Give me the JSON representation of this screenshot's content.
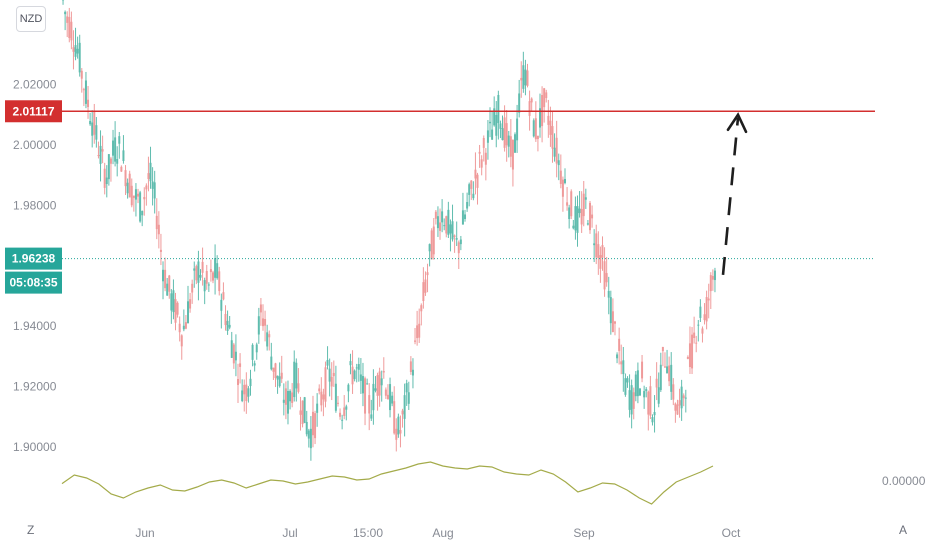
{
  "currency_label": "NZD",
  "corner_left": "Z",
  "corner_right": "A",
  "indicator_value_label": "0.00000",
  "price_labels": [
    "2.02000",
    "2.00000",
    "1.98000",
    "1.94000",
    "1.92000",
    "1.90000"
  ],
  "time_labels": [
    "Jun",
    "Jul",
    "15:00",
    "Aug",
    "Sep",
    "Oct"
  ],
  "resistance_badge": "2.01117",
  "current_price_badge": "1.96238",
  "countdown_badge": "05:08:35",
  "colors": {
    "up": "#5fbcae",
    "down": "#ef9a9a",
    "resistance": "#d32f2f",
    "current": "#26a69a",
    "indicator": "#a4ab4a",
    "arrow": "#1e1e1e"
  },
  "chart_data": {
    "type": "candlestick",
    "instrument_currency": "NZD",
    "y_axis_ticks": [
      2.02,
      2.0,
      1.98,
      1.94,
      1.92,
      1.9
    ],
    "ylim": [
      1.898,
      2.055
    ],
    "x_axis_ticks": [
      "Jun",
      "Jul",
      "15:00",
      "Aug",
      "Sep",
      "Oct"
    ],
    "resistance_level": 2.01117,
    "current_price": 1.96238,
    "countdown": "05:08:35",
    "projection": {
      "from": 1.957,
      "to": 2.011,
      "style": "dashed arrow"
    },
    "price_path": [
      2.05,
      2.042,
      2.04,
      2.035,
      2.03,
      2.022,
      2.015,
      2.01,
      2.004,
      1.998,
      1.992,
      1.99,
      1.996,
      2.0,
      1.998,
      1.993,
      1.988,
      1.984,
      1.982,
      1.979,
      1.985,
      1.99,
      1.984,
      1.975,
      1.962,
      1.955,
      1.95,
      1.946,
      1.942,
      1.938,
      1.944,
      1.95,
      1.955,
      1.96,
      1.955,
      1.952,
      1.956,
      1.958,
      1.952,
      1.946,
      1.94,
      1.934,
      1.928,
      1.922,
      1.918,
      1.924,
      1.93,
      1.938,
      1.944,
      1.94,
      1.932,
      1.926,
      1.922,
      1.918,
      1.914,
      1.918,
      1.924,
      1.918,
      1.912,
      1.906,
      1.905,
      1.91,
      1.915,
      1.92,
      1.924,
      1.922,
      1.916,
      1.912,
      1.916,
      1.922,
      1.926,
      1.924,
      1.92,
      1.916,
      1.913,
      1.918,
      1.922,
      1.926,
      1.92,
      1.914,
      1.908,
      1.904,
      1.91,
      1.918,
      1.926,
      1.934,
      1.942,
      1.952,
      1.96,
      1.968,
      1.974,
      1.978,
      1.976,
      1.972,
      1.968,
      1.966,
      1.972,
      1.978,
      1.983,
      1.988,
      1.992,
      1.997,
      2.0,
      2.004,
      2.008,
      2.012,
      2.006,
      2.0,
      1.996,
      2.002,
      2.016,
      2.026,
      2.018,
      2.008,
      2.004,
      2.01,
      2.014,
      2.008,
      2.002,
      1.996,
      1.99,
      1.985,
      1.98,
      1.976,
      1.974,
      1.978,
      1.98,
      1.975,
      1.97,
      1.965,
      1.96,
      1.952,
      1.944,
      1.936,
      1.928,
      1.922,
      1.918,
      1.916,
      1.92,
      1.924,
      1.918,
      1.915,
      1.913,
      1.918,
      1.926,
      1.932,
      1.924,
      1.916,
      1.91,
      1.916,
      1.924,
      1.93,
      1.938,
      1.945,
      1.94,
      1.948,
      1.955,
      1.962
    ],
    "indicator_path": [
      0.12,
      0.55,
      0.4,
      0.1,
      -0.4,
      -0.6,
      -0.3,
      -0.1,
      0.05,
      -0.2,
      -0.25,
      -0.05,
      0.2,
      0.3,
      0.15,
      -0.1,
      0.1,
      0.3,
      0.25,
      0.1,
      0.2,
      0.35,
      0.5,
      0.45,
      0.3,
      0.35,
      0.6,
      0.75,
      0.9,
      1.1,
      1.2,
      1.0,
      0.9,
      0.85,
      1.0,
      0.95,
      0.7,
      0.6,
      0.55,
      0.8,
      0.6,
      0.2,
      -0.3,
      -0.1,
      0.15,
      0.1,
      -0.2,
      -0.6,
      -0.9,
      -0.3,
      0.2,
      0.45,
      0.7,
      1.0
    ],
    "indicator_value": 0.0
  }
}
